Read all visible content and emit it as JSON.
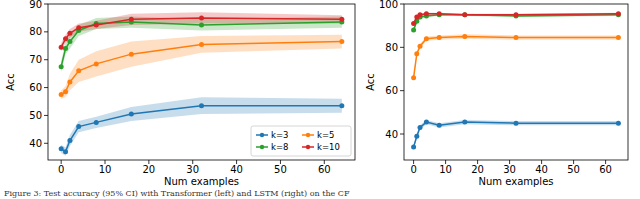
{
  "chart_data": [
    {
      "type": "line",
      "x_label": "Num examples",
      "y_label": "Acc",
      "x": [
        0,
        1,
        2,
        4,
        8,
        16,
        32,
        64
      ],
      "xlim": [
        -3,
        67
      ],
      "xticks": [
        0,
        10,
        20,
        30,
        40,
        50,
        60
      ],
      "ylim": [
        34,
        90
      ],
      "yticks": [
        40,
        50,
        60,
        70,
        80,
        90
      ],
      "legend": "lower right",
      "marker": "circle",
      "series": [
        {
          "name": "k=3",
          "color": "#1f77b4",
          "values": [
            38,
            37,
            41,
            46,
            47.5,
            50.5,
            53.5,
            53.5
          ],
          "error": [
            1.5,
            1.5,
            2,
            2,
            2,
            2.5,
            3,
            2.5
          ]
        },
        {
          "name": "k=5",
          "color": "#ff7f0e",
          "values": [
            57.5,
            58.5,
            62,
            66,
            68.5,
            72,
            75.5,
            76.5
          ],
          "error": [
            1.5,
            2,
            3,
            4,
            4.5,
            4.5,
            3,
            2.5
          ]
        },
        {
          "name": "k=8",
          "color": "#2ca02c",
          "values": [
            67.5,
            74,
            76.5,
            80.5,
            83,
            83.5,
            82.5,
            83.5
          ],
          "error": [
            2,
            2,
            2.5,
            2,
            2,
            2,
            2,
            2
          ]
        },
        {
          "name": "k=10",
          "color": "#d62728",
          "values": [
            74.5,
            77.5,
            79.5,
            81.5,
            82.5,
            84.5,
            85,
            84.5
          ],
          "error": [
            1.5,
            1.5,
            1.5,
            1.5,
            1.5,
            2,
            2,
            1.5
          ]
        }
      ]
    },
    {
      "type": "line",
      "x_label": "Num examples",
      "y_label": "Acc",
      "x": [
        0,
        1,
        2,
        4,
        8,
        16,
        32,
        64
      ],
      "xlim": [
        -3,
        67
      ],
      "xticks": [
        0,
        10,
        20,
        30,
        40,
        50,
        60
      ],
      "ylim": [
        28,
        100
      ],
      "yticks": [
        40,
        60,
        80,
        100
      ],
      "marker": "circle",
      "series": [
        {
          "color": "#1f77b4",
          "values": [
            34,
            39,
            43,
            45.5,
            44,
            45.5,
            45,
            45
          ],
          "error": [
            1,
            1,
            1,
            1,
            1,
            1,
            1,
            1
          ]
        },
        {
          "color": "#ff7f0e",
          "values": [
            66,
            77,
            80.5,
            84,
            84.5,
            85,
            84.5,
            84.5
          ],
          "error": [
            1,
            1,
            1,
            1,
            1,
            1,
            1,
            1
          ]
        },
        {
          "color": "#2ca02c",
          "values": [
            88,
            92,
            94,
            94.5,
            95,
            95,
            94.5,
            95
          ],
          "error": [
            1,
            1,
            1,
            0.5,
            0.5,
            0.5,
            0.5,
            0.5
          ]
        },
        {
          "color": "#d62728",
          "values": [
            91,
            94,
            95,
            95.5,
            95.5,
            95,
            95,
            95.5
          ],
          "error": [
            1,
            1,
            0.5,
            0.5,
            0.5,
            0.5,
            0.5,
            0.5
          ]
        }
      ]
    }
  ],
  "caption": "Figure 3: Test accuracy (95% CI) with Transformer (left) and LSTM (right) on the CF"
}
